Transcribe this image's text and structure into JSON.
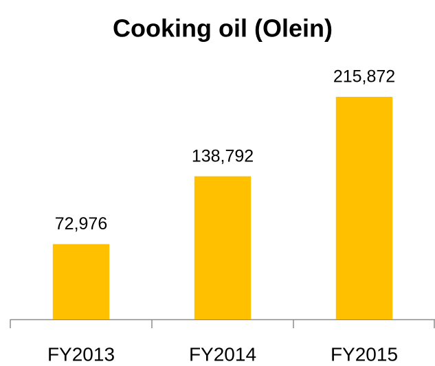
{
  "chart_data": {
    "type": "bar",
    "title": "Cooking oil (Olein)",
    "categories": [
      "FY2013",
      "FY2014",
      "FY2015"
    ],
    "values": [
      72976,
      138792,
      215872
    ],
    "value_labels": [
      "72,976",
      "138,792",
      "215,872"
    ],
    "color": "#ffc000"
  }
}
